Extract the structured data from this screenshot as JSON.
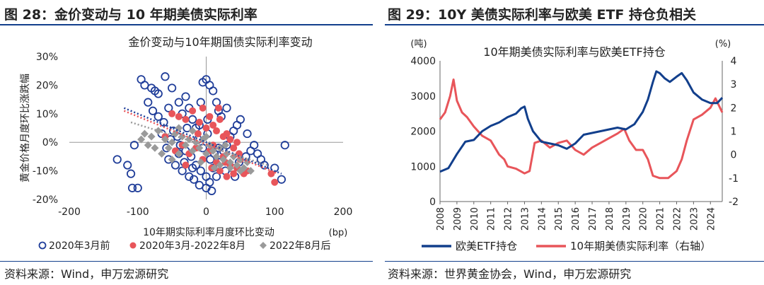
{
  "left": {
    "panel_title": "图 28：金价变动与 10 年期美债实际利率",
    "source": "资料来源：Wind，申万宏源研究",
    "chart_data": {
      "type": "scatter",
      "title": "金价变动与10年期国债实际利率变动",
      "xlabel": "10年期实际利率月度环比变动",
      "xunit": "(bp)",
      "ylabel": "黄金价格月度环比涨跌幅",
      "xlim": [
        -200,
        200
      ],
      "ylim": [
        -20,
        30
      ],
      "xticks": [
        "-200",
        "-100",
        "0",
        "100",
        "200"
      ],
      "yticks": [
        "30%",
        "20%",
        "10%",
        "0%",
        "-10%",
        "-20%"
      ],
      "legend": "bottom",
      "series": [
        {
          "name": "2020年3月前",
          "color": "#1f3d99",
          "marker": "open-circle",
          "points": [
            [
              -130,
              -6
            ],
            [
              -115,
              -8
            ],
            [
              -110,
              -11
            ],
            [
              -108,
              -16
            ],
            [
              -100,
              -16
            ],
            [
              -105,
              -1
            ],
            [
              -95,
              22
            ],
            [
              -90,
              20
            ],
            [
              -80,
              19
            ],
            [
              -75,
              18
            ],
            [
              -70,
              17
            ],
            [
              -60,
              23
            ],
            [
              -50,
              19
            ],
            [
              -40,
              14
            ],
            [
              -35,
              10
            ],
            [
              -30,
              16
            ],
            [
              -25,
              12
            ],
            [
              -20,
              8
            ],
            [
              -15,
              5
            ],
            [
              -10,
              6
            ],
            [
              -5,
              21
            ],
            [
              0,
              22
            ],
            [
              5,
              20
            ],
            [
              10,
              18
            ],
            [
              15,
              14
            ],
            [
              -85,
              14
            ],
            [
              -78,
              11
            ],
            [
              -70,
              9
            ],
            [
              -62,
              7
            ],
            [
              -55,
              12
            ],
            [
              -48,
              4
            ],
            [
              -42,
              2
            ],
            [
              -38,
              -1
            ],
            [
              -30,
              -3
            ],
            [
              -22,
              -5
            ],
            [
              -15,
              -8
            ],
            [
              -8,
              -10
            ],
            [
              0,
              -12
            ],
            [
              5,
              -14
            ],
            [
              10,
              -9
            ],
            [
              20,
              -7
            ],
            [
              25,
              -3
            ],
            [
              30,
              -1
            ],
            [
              35,
              2
            ],
            [
              40,
              4
            ],
            [
              45,
              6
            ],
            [
              50,
              8
            ],
            [
              -55,
              -6
            ],
            [
              -45,
              -8
            ],
            [
              -35,
              -10
            ],
            [
              -25,
              -12
            ],
            [
              -18,
              -13
            ],
            [
              -10,
              -15
            ],
            [
              0,
              -16
            ],
            [
              8,
              -17
            ],
            [
              15,
              -12
            ],
            [
              28,
              -10
            ],
            [
              38,
              -9
            ],
            [
              48,
              -7
            ],
            [
              58,
              -5
            ],
            [
              65,
              -3
            ],
            [
              70,
              -1
            ],
            [
              75,
              -4
            ],
            [
              80,
              -6
            ],
            [
              100,
              -9
            ],
            [
              110,
              -13
            ],
            [
              115,
              -1
            ],
            [
              85,
              -8
            ],
            [
              60,
              3
            ],
            [
              55,
              -10
            ],
            [
              -65,
              3
            ],
            [
              -58,
              -2
            ],
            [
              -52,
              1
            ],
            [
              -12,
              1
            ],
            [
              -5,
              -2
            ],
            [
              2,
              3
            ],
            [
              12,
              -4
            ],
            [
              18,
              -2
            ],
            [
              -28,
              5
            ],
            [
              -20,
              -9
            ],
            [
              22,
              9
            ],
            [
              30,
              12
            ],
            [
              42,
              -12
            ],
            [
              18,
              11
            ],
            [
              -8,
              14
            ],
            [
              2,
              8
            ],
            [
              6,
              -6
            ],
            [
              -40,
              -4
            ],
            [
              -32,
              -7
            ]
          ]
        },
        {
          "name": "2020年3月-2022年8月",
          "color": "#e8555a",
          "marker": "filled-circle",
          "points": [
            [
              -50,
              10
            ],
            [
              -40,
              9
            ],
            [
              -30,
              8
            ],
            [
              -20,
              11
            ],
            [
              -10,
              7
            ],
            [
              -5,
              12
            ],
            [
              0,
              5
            ],
            [
              5,
              9
            ],
            [
              10,
              6
            ],
            [
              15,
              4
            ],
            [
              20,
              8
            ],
            [
              25,
              2
            ],
            [
              30,
              3
            ],
            [
              35,
              1
            ],
            [
              40,
              -2
            ],
            [
              45,
              0
            ],
            [
              -45,
              -3
            ],
            [
              -35,
              -1
            ],
            [
              -25,
              -4
            ],
            [
              -15,
              -2
            ],
            [
              -5,
              -6
            ],
            [
              5,
              -3
            ],
            [
              15,
              -7
            ],
            [
              25,
              -5
            ],
            [
              35,
              -8
            ],
            [
              45,
              -9
            ],
            [
              55,
              -11
            ],
            [
              50,
              -6
            ],
            [
              60,
              -10
            ],
            [
              95,
              -11
            ],
            [
              100,
              -14
            ],
            [
              -60,
              2
            ],
            [
              20,
              -10
            ],
            [
              30,
              -12
            ],
            [
              40,
              -11
            ],
            [
              -30,
              -8
            ],
            [
              10,
              -1
            ],
            [
              28,
              -7
            ],
            [
              48,
              -4
            ],
            [
              -12,
              3
            ],
            [
              18,
              12
            ],
            [
              8,
              -9
            ]
          ]
        },
        {
          "name": "2022年8月后",
          "color": "#9a9a9a",
          "marker": "filled-diamond",
          "points": [
            [
              -90,
              3
            ],
            [
              -85,
              -1
            ],
            [
              -80,
              2
            ],
            [
              -70,
              4
            ],
            [
              -60,
              1
            ],
            [
              -55,
              -2
            ],
            [
              -50,
              0
            ],
            [
              -45,
              3
            ],
            [
              -40,
              -4
            ],
            [
              -35,
              2
            ],
            [
              -30,
              -1
            ],
            [
              -25,
              1
            ],
            [
              -20,
              -3
            ],
            [
              -15,
              0
            ],
            [
              -10,
              -2
            ],
            [
              -5,
              1
            ],
            [
              0,
              -4
            ],
            [
              5,
              -1
            ],
            [
              10,
              -3
            ],
            [
              15,
              -5
            ],
            [
              20,
              -2
            ],
            [
              25,
              -6
            ],
            [
              30,
              -4
            ],
            [
              35,
              -7
            ],
            [
              40,
              -5
            ],
            [
              45,
              -8
            ],
            [
              50,
              -6
            ],
            [
              55,
              -9
            ],
            [
              60,
              -7
            ],
            [
              65,
              -10
            ],
            [
              -75,
              -2
            ],
            [
              -65,
              -4
            ],
            [
              -40,
              5
            ],
            [
              -20,
              4
            ],
            [
              0,
              2
            ],
            [
              20,
              -8
            ],
            [
              35,
              -9
            ],
            [
              50,
              -10
            ],
            [
              -95,
              1
            ],
            [
              -50,
              -6
            ],
            [
              12,
              -9
            ],
            [
              28,
              -1
            ],
            [
              -8,
              -7
            ]
          ]
        }
      ],
      "trendlines": [
        {
          "color": "#1f3d99",
          "style": "dotted",
          "from": [
            -120,
            12
          ],
          "to": [
            110,
            -11
          ]
        },
        {
          "color": "#e8555a",
          "style": "dotted",
          "from": [
            -120,
            11
          ],
          "to": [
            105,
            -11
          ]
        },
        {
          "color": "#9a9a9a",
          "style": "dotted",
          "from": [
            -110,
            7
          ],
          "to": [
            90,
            -8
          ]
        }
      ]
    }
  },
  "right": {
    "panel_title": "图 29：10Y 美债实际利率与欧美 ETF 持仓负相关",
    "source": "资料来源：世界黄金协会，Wind，申万宏源研究",
    "chart_data": {
      "type": "line",
      "title": "10年期美债实际利率与欧美ETF持仓",
      "y1unit": "(吨)",
      "y2unit": "(%)",
      "y1lim": [
        0,
        4000
      ],
      "y2lim": [
        -2,
        4
      ],
      "y1ticks": [
        "4000",
        "3000",
        "2000",
        "1000",
        "0"
      ],
      "y2ticks": [
        "4",
        "3",
        "2",
        "1",
        "0",
        "-1",
        "-2"
      ],
      "xlim": [
        2008,
        2024.7
      ],
      "xticks": [
        "2008",
        "2009",
        "2010",
        "2011",
        "2012",
        "2013",
        "2014",
        "2015",
        "2016",
        "2017",
        "2018",
        "2019",
        "2020",
        "2021",
        "2022",
        "2023",
        "2024"
      ],
      "legend": "bottom",
      "series": [
        {
          "name": "欧美ETF持仓",
          "axis": "left",
          "color": "#123f8c",
          "x": [
            2008.0,
            2008.5,
            2009.0,
            2009.5,
            2010.0,
            2010.5,
            2011.0,
            2011.5,
            2012.0,
            2012.5,
            2012.8,
            2013.0,
            2013.2,
            2013.5,
            2014.0,
            2014.5,
            2015.0,
            2015.5,
            2016.0,
            2016.5,
            2017.0,
            2017.5,
            2018.0,
            2018.5,
            2019.0,
            2019.5,
            2020.0,
            2020.3,
            2020.6,
            2020.8,
            2021.0,
            2021.3,
            2021.6,
            2022.0,
            2022.3,
            2022.6,
            2023.0,
            2023.5,
            2024.0,
            2024.4,
            2024.7
          ],
          "values": [
            850,
            950,
            1350,
            1700,
            1750,
            2000,
            2150,
            2250,
            2400,
            2500,
            2650,
            2700,
            2350,
            2000,
            1700,
            1650,
            1600,
            1500,
            1650,
            1900,
            1950,
            2000,
            2050,
            2100,
            2050,
            2200,
            2550,
            2900,
            3400,
            3700,
            3650,
            3500,
            3400,
            3550,
            3650,
            3450,
            3100,
            2900,
            2800,
            2800,
            2950
          ]
        },
        {
          "name": "10年期美债实际利率（右轴）",
          "axis": "right",
          "color": "#e8555a",
          "x": [
            2008.0,
            2008.3,
            2008.6,
            2008.8,
            2009.0,
            2009.3,
            2009.6,
            2010.0,
            2010.5,
            2011.0,
            2011.5,
            2011.8,
            2012.0,
            2012.5,
            2013.0,
            2013.3,
            2013.6,
            2014.0,
            2014.5,
            2015.0,
            2015.5,
            2016.0,
            2016.5,
            2017.0,
            2017.5,
            2018.0,
            2018.5,
            2018.9,
            2019.2,
            2019.6,
            2020.0,
            2020.3,
            2020.6,
            2021.0,
            2021.5,
            2022.0,
            2022.3,
            2022.6,
            2023.0,
            2023.5,
            2024.0,
            2024.3,
            2024.7
          ],
          "values": [
            1.5,
            1.8,
            2.5,
            3.2,
            2.3,
            1.8,
            1.6,
            1.2,
            0.8,
            0.6,
            0.0,
            -0.2,
            -0.5,
            -0.6,
            -0.8,
            -0.7,
            0.5,
            0.6,
            0.3,
            0.5,
            0.6,
            0.2,
            0.0,
            0.3,
            0.5,
            0.7,
            0.9,
            1.1,
            0.6,
            0.2,
            0.2,
            -0.2,
            -0.9,
            -1.0,
            -1.0,
            -0.7,
            -0.2,
            0.6,
            1.5,
            1.7,
            2.0,
            2.4,
            1.8
          ]
        }
      ]
    }
  }
}
